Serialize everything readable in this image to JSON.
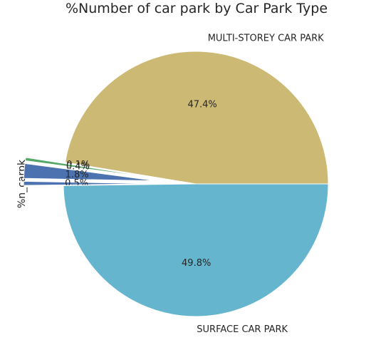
{
  "chart_data": {
    "type": "pie",
    "title": "%Number of car park by Car Park Type",
    "ylabel": "%n_carpk",
    "slices": [
      {
        "label": "MULTI-STOREY CAR PARK",
        "value": 47.4,
        "pct_label": "47.4%",
        "color": "#ccb974",
        "exploded": false
      },
      {
        "label": "",
        "value": 0.1,
        "pct_label": "0.1%",
        "color": "#c44e52",
        "exploded": true
      },
      {
        "label": "",
        "value": 0.4,
        "pct_label": "0.4%",
        "color": "#55a868",
        "exploded": true
      },
      {
        "label": "",
        "value": 1.8,
        "pct_label": "1.8%",
        "color": "#4c72b0",
        "exploded": true
      },
      {
        "label": "",
        "value": 0.5,
        "pct_label": "0.5%",
        "color": "#4c72b0",
        "exploded": true
      },
      {
        "label": "SURFACE CAR PARK",
        "value": 49.8,
        "pct_label": "49.8%",
        "color": "#64b5cd",
        "exploded": false
      }
    ]
  }
}
